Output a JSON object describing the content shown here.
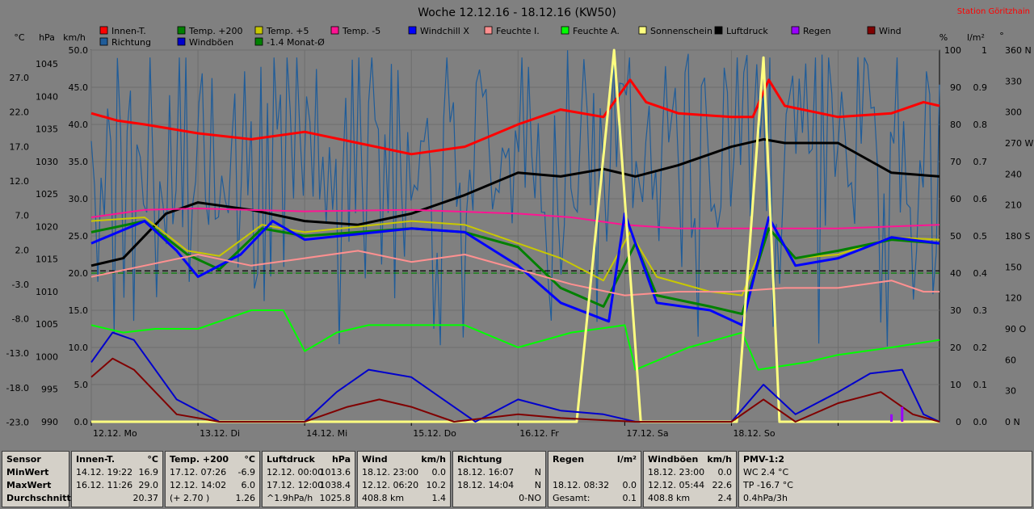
{
  "chart_data": {
    "type": "line",
    "title": "Woche 12.12.16 - 18.12.16 (KW50)",
    "station": "Station Göritzhain",
    "left_axes": [
      {
        "unit": "°C",
        "ticks": [
          "27.0",
          "22.0",
          "17.0",
          "12.0",
          "7.0",
          "2.0",
          "-3.0",
          "-8.0",
          "-13.0",
          "-18.0",
          "-23.0"
        ]
      },
      {
        "unit": "hPa",
        "ticks": [
          "1045",
          "1040",
          "1035",
          "1030",
          "1025",
          "1020",
          "1015",
          "1010",
          "1005",
          "1000",
          "995",
          "990"
        ]
      },
      {
        "unit": "km/h",
        "ticks": [
          "50.0",
          "45.0",
          "40.0",
          "35.0",
          "30.0",
          "25.0",
          "20.0",
          "15.0",
          "10.0",
          "5.0",
          "0.0"
        ]
      }
    ],
    "right_axes": [
      {
        "unit": "%",
        "ticks": [
          "100",
          "90",
          "80",
          "70",
          "60",
          "50",
          "40",
          "30",
          "20",
          "10",
          "0"
        ]
      },
      {
        "unit": "l/m²",
        "ticks": [
          "1",
          "0.9",
          "0.8",
          "0.7",
          "0.6",
          "0.5",
          "0.4",
          "0.3",
          "0.2",
          "0.1",
          "0.0"
        ]
      },
      {
        "unit": "°",
        "ticks": [
          "360 N",
          "330",
          "300",
          "270 W",
          "240",
          "210",
          "180 S",
          "150",
          "120",
          "90 O",
          "60",
          "30",
          "0 N"
        ]
      }
    ],
    "x_ticks": [
      "12.12. Mo",
      "13.12. Di",
      "14.12. Mi",
      "15.12. Do",
      "16.12. Fr",
      "17.12. Sa",
      "18.12. So"
    ],
    "legend_row1": [
      {
        "name": "Innen-T.",
        "color": "#ff0000"
      },
      {
        "name": "Temp. +200",
        "color": "#008000"
      },
      {
        "name": "Temp. +5",
        "color": "#c8c800"
      },
      {
        "name": "Temp. -5",
        "color": "#ff1493"
      },
      {
        "name": "Windchill X",
        "color": "#0000ff"
      },
      {
        "name": "Feuchte I.",
        "color": "#ff9090"
      },
      {
        "name": "Feuchte A.",
        "color": "#00ff00"
      },
      {
        "name": "Sonnenschein",
        "color": "#ffff80"
      },
      {
        "name": "Luftdruck",
        "color": "#000000"
      },
      {
        "name": "Regen",
        "color": "#9900ff"
      },
      {
        "name": "Wind",
        "color": "#800000"
      }
    ],
    "legend_row2": [
      {
        "name": "Richtung",
        "color": "#1f5c99"
      },
      {
        "name": "Windböen",
        "color": "#0000cc"
      },
      {
        "name": "-1.4 Monat-Ø",
        "color": "#008000"
      }
    ],
    "reference_lines": [
      {
        "color": "#000000",
        "value_kmh": 20.3
      },
      {
        "color": "#008000",
        "value_kmh": 20.0
      }
    ],
    "series": [
      {
        "key": "innen",
        "color": "#ff0000",
        "width": 3,
        "y_axis": "km/h",
        "points": [
          [
            0,
            41.5
          ],
          [
            0.25,
            40.5
          ],
          [
            0.5,
            40
          ],
          [
            1,
            38.8
          ],
          [
            1.5,
            38
          ],
          [
            2,
            39
          ],
          [
            2.5,
            37.5
          ],
          [
            3,
            36
          ],
          [
            3.5,
            37
          ],
          [
            4,
            40
          ],
          [
            4.4,
            42
          ],
          [
            4.8,
            41
          ],
          [
            5.05,
            46
          ],
          [
            5.2,
            43
          ],
          [
            5.5,
            41.5
          ],
          [
            6,
            41
          ],
          [
            6.2,
            41
          ],
          [
            6.35,
            46
          ],
          [
            6.5,
            42.5
          ],
          [
            7,
            41
          ],
          [
            7.5,
            41.5
          ],
          [
            7.8,
            43
          ],
          [
            7.95,
            42.5
          ]
        ]
      },
      {
        "key": "luftdruck",
        "color": "#000000",
        "width": 3,
        "y_axis": "km/h",
        "points": [
          [
            0,
            21
          ],
          [
            0.3,
            22
          ],
          [
            0.7,
            28
          ],
          [
            1,
            29.5
          ],
          [
            1.5,
            28.5
          ],
          [
            2,
            27
          ],
          [
            2.5,
            26.5
          ],
          [
            3,
            28
          ],
          [
            3.5,
            30.5
          ],
          [
            4,
            33.5
          ],
          [
            4.4,
            33
          ],
          [
            4.8,
            34
          ],
          [
            5.1,
            33
          ],
          [
            5.5,
            34.5
          ],
          [
            6,
            37
          ],
          [
            6.3,
            38
          ],
          [
            6.5,
            37.5
          ],
          [
            7,
            37.5
          ],
          [
            7.5,
            33.5
          ],
          [
            7.95,
            33
          ]
        ]
      },
      {
        "key": "temp_m5",
        "color": "#ff1493",
        "width": 2,
        "y_axis": "km/h",
        "points": [
          [
            0,
            27.5
          ],
          [
            0.5,
            28.5
          ],
          [
            1,
            28.7
          ],
          [
            2,
            28.3
          ],
          [
            3,
            28.5
          ],
          [
            4,
            28
          ],
          [
            4.5,
            27.5
          ],
          [
            5,
            26.5
          ],
          [
            5.5,
            26
          ],
          [
            6,
            26
          ],
          [
            7,
            26
          ],
          [
            7.95,
            26.5
          ]
        ]
      },
      {
        "key": "temp_p5",
        "color": "#c8c800",
        "width": 2,
        "y_axis": "km/h",
        "points": [
          [
            0,
            27
          ],
          [
            0.5,
            27.5
          ],
          [
            0.9,
            23
          ],
          [
            1.2,
            22.3
          ],
          [
            1.6,
            26.5
          ],
          [
            2,
            25.5
          ],
          [
            3,
            27
          ],
          [
            3.5,
            26.5
          ],
          [
            4,
            24
          ],
          [
            4.4,
            22
          ],
          [
            4.8,
            19
          ],
          [
            5.05,
            25.5
          ],
          [
            5.3,
            19.5
          ],
          [
            5.8,
            17.5
          ],
          [
            6.1,
            17
          ],
          [
            6.35,
            26
          ],
          [
            6.6,
            22
          ],
          [
            7,
            22.5
          ],
          [
            7.5,
            24.8
          ],
          [
            7.95,
            24.5
          ]
        ]
      },
      {
        "key": "temp_p200",
        "color": "#008000",
        "width": 3,
        "y_axis": "km/h",
        "points": [
          [
            0,
            25.5
          ],
          [
            0.5,
            27
          ],
          [
            0.9,
            22.5
          ],
          [
            1.2,
            20.5
          ],
          [
            1.6,
            26
          ],
          [
            2,
            25
          ],
          [
            3,
            26
          ],
          [
            3.5,
            25.5
          ],
          [
            4,
            23.5
          ],
          [
            4.4,
            18
          ],
          [
            4.8,
            15.5
          ],
          [
            5.1,
            24
          ],
          [
            5.3,
            17
          ],
          [
            5.8,
            15.5
          ],
          [
            6.1,
            14.5
          ],
          [
            6.35,
            26
          ],
          [
            6.6,
            22
          ],
          [
            7,
            23
          ],
          [
            7.5,
            24.5
          ],
          [
            7.95,
            24
          ]
        ]
      },
      {
        "key": "windchill",
        "color": "#0000ff",
        "width": 3,
        "y_axis": "km/h",
        "points": [
          [
            0,
            24
          ],
          [
            0.5,
            27
          ],
          [
            0.8,
            23
          ],
          [
            1,
            19.5
          ],
          [
            1.4,
            22.5
          ],
          [
            1.7,
            27
          ],
          [
            2,
            24.5
          ],
          [
            3,
            26
          ],
          [
            3.5,
            25.5
          ],
          [
            4,
            21
          ],
          [
            4.4,
            16
          ],
          [
            4.85,
            13.5
          ],
          [
            5.0,
            28
          ],
          [
            5.3,
            16
          ],
          [
            5.8,
            15
          ],
          [
            6.1,
            13
          ],
          [
            6.35,
            27.5
          ],
          [
            6.6,
            21
          ],
          [
            7,
            22
          ],
          [
            7.5,
            24.8
          ],
          [
            7.95,
            24
          ]
        ]
      },
      {
        "key": "feuchte_i",
        "color": "#ff9090",
        "width": 2,
        "y_axis": "km/h",
        "points": [
          [
            0,
            19.5
          ],
          [
            0.5,
            21
          ],
          [
            1,
            22.5
          ],
          [
            1.5,
            21
          ],
          [
            2,
            22
          ],
          [
            2.5,
            23
          ],
          [
            3,
            21.5
          ],
          [
            3.5,
            22.5
          ],
          [
            4,
            20.5
          ],
          [
            4.5,
            18.5
          ],
          [
            5,
            17
          ],
          [
            5.5,
            17.5
          ],
          [
            6,
            17.5
          ],
          [
            6.5,
            18
          ],
          [
            7,
            18
          ],
          [
            7.5,
            19
          ],
          [
            7.8,
            17.5
          ],
          [
            7.95,
            17.5
          ]
        ]
      },
      {
        "key": "feuchte_a",
        "color": "#00ff00",
        "width": 2,
        "y_axis": "km/h",
        "points": [
          [
            0,
            13
          ],
          [
            0.3,
            12
          ],
          [
            0.6,
            12.5
          ],
          [
            1,
            12.5
          ],
          [
            1.3,
            14
          ],
          [
            1.5,
            15
          ],
          [
            1.8,
            15
          ],
          [
            2,
            9.5
          ],
          [
            2.3,
            12
          ],
          [
            2.6,
            13
          ],
          [
            3,
            13
          ],
          [
            3.5,
            13
          ],
          [
            4,
            10
          ],
          [
            4.5,
            12
          ],
          [
            5,
            13
          ],
          [
            5.1,
            7
          ],
          [
            5.6,
            10
          ],
          [
            6.1,
            12
          ],
          [
            6.25,
            7
          ],
          [
            6.7,
            8
          ],
          [
            7,
            9
          ],
          [
            7.5,
            10
          ],
          [
            7.95,
            11
          ]
        ]
      },
      {
        "key": "sonnenschein",
        "color": "#ffff80",
        "width": 3,
        "y_axis": "km/h",
        "points": [
          [
            0,
            0
          ],
          [
            4.55,
            0
          ],
          [
            4.9,
            50
          ],
          [
            5.15,
            0
          ],
          [
            6.05,
            0
          ],
          [
            6.3,
            49
          ],
          [
            6.45,
            0
          ],
          [
            7.95,
            0
          ]
        ]
      },
      {
        "key": "windboeen",
        "color": "#0000cc",
        "width": 2,
        "y_axis": "km/h",
        "points": [
          [
            0,
            8
          ],
          [
            0.2,
            12
          ],
          [
            0.4,
            11
          ],
          [
            0.8,
            3
          ],
          [
            1.2,
            0
          ],
          [
            2,
            0
          ],
          [
            2.3,
            4
          ],
          [
            2.6,
            7
          ],
          [
            3,
            6
          ],
          [
            3.3,
            3
          ],
          [
            3.6,
            0
          ],
          [
            4,
            3
          ],
          [
            4.4,
            1.5
          ],
          [
            4.8,
            1
          ],
          [
            5.1,
            0
          ],
          [
            6,
            0
          ],
          [
            6.3,
            5
          ],
          [
            6.6,
            1
          ],
          [
            7,
            4
          ],
          [
            7.3,
            6.5
          ],
          [
            7.6,
            7
          ],
          [
            7.8,
            1
          ],
          [
            7.95,
            0
          ]
        ]
      },
      {
        "key": "wind",
        "color": "#800000",
        "width": 2,
        "y_axis": "km/h",
        "points": [
          [
            0,
            6
          ],
          [
            0.2,
            8.5
          ],
          [
            0.4,
            7
          ],
          [
            0.8,
            1
          ],
          [
            1.2,
            0
          ],
          [
            2,
            0
          ],
          [
            2.4,
            2
          ],
          [
            2.7,
            3
          ],
          [
            3,
            2
          ],
          [
            3.4,
            0
          ],
          [
            4,
            1
          ],
          [
            4.4,
            0.5
          ],
          [
            5.1,
            0
          ],
          [
            6,
            0
          ],
          [
            6.3,
            3
          ],
          [
            6.6,
            0
          ],
          [
            7,
            2.5
          ],
          [
            7.4,
            4
          ],
          [
            7.7,
            1
          ],
          [
            7.95,
            0
          ]
        ]
      }
    ],
    "regen_bars": [
      [
        7.5,
        0.02
      ],
      [
        7.6,
        0.04
      ]
    ]
  },
  "stats": {
    "sensor": {
      "labels": [
        "Sensor",
        "MinWert",
        "MaxWert",
        "Durchschnitt"
      ]
    },
    "innen": {
      "title": "Innen-T.",
      "unit": "°C",
      "rows": [
        [
          "14.12.  19:22",
          "16.9"
        ],
        [
          "16.12.  11:26",
          "29.0"
        ],
        [
          "",
          "20.37"
        ]
      ]
    },
    "temp200": {
      "title": "Temp. +200",
      "unit": "°C",
      "rows": [
        [
          "17.12.  07:26",
          "-6.9"
        ],
        [
          "12.12.  14:02",
          "6.0"
        ],
        [
          "(+ 2.70 )",
          "1.26"
        ]
      ]
    },
    "luftdruck": {
      "title": "Luftdruck",
      "unit": "hPa",
      "rows": [
        [
          "12.12.  00:00",
          "1013.6"
        ],
        [
          "17.12.  12:00",
          "1038.4"
        ],
        [
          "^1.9hPa/h",
          "1025.8"
        ]
      ]
    },
    "wind": {
      "title": "Wind",
      "unit": "km/h",
      "rows": [
        [
          "18.12.  23:00",
          "0.0"
        ],
        [
          "12.12.  06:20",
          "10.2"
        ],
        [
          "408.8 km",
          "1.4"
        ]
      ]
    },
    "richtung": {
      "title": "Richtung",
      "unit": "",
      "rows": [
        [
          "18.12.  16:07",
          "N"
        ],
        [
          "18.12.  14:04",
          "N"
        ],
        [
          "",
          "0-NO"
        ]
      ]
    },
    "regen": {
      "title": "Regen",
      "unit": "l/m²",
      "rows": [
        [
          "",
          ""
        ],
        [
          "18.12.  08:32",
          "0.0"
        ],
        [
          "Gesamt:",
          "0.1"
        ]
      ]
    },
    "windboeen": {
      "title": "Windböen",
      "unit": "km/h",
      "rows": [
        [
          "18.12.  23:00",
          "0.0"
        ],
        [
          "12.12.  05:44",
          "22.6"
        ],
        [
          "408.8 km",
          "2.4"
        ]
      ]
    },
    "pmv": {
      "title": "PMV-1:2",
      "rows": [
        "WC 2.4 °C",
        "TP -16.7 °C",
        "0.4hPa/3h"
      ]
    }
  }
}
